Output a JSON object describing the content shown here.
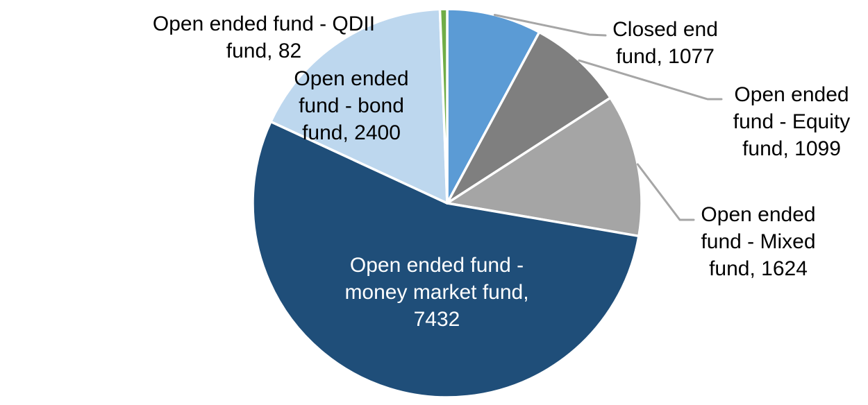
{
  "page": {
    "background_color": "#FFFFFF"
  },
  "chart_data": {
    "type": "pie",
    "title": "",
    "legend": "none",
    "total": 13714,
    "start_angle_deg": 0,
    "direction": "clockwise",
    "slice_border_color": "#FFFFFF",
    "leader_line_color": "#A6A6A6",
    "label_font_size_px": 30,
    "slices": [
      {
        "name": "Closed end fund",
        "value": 1077,
        "color": "#5B9BD5",
        "label_lines": [
          "Closed end",
          "fund, 1077"
        ],
        "label_placement": "outside-right",
        "label_color": "#000000",
        "has_leader_line": true
      },
      {
        "name": "Open ended fund - Equity fund",
        "value": 1099,
        "color": "#7F7F7F",
        "label_lines": [
          "Open ended",
          "fund - Equity",
          "fund, 1099"
        ],
        "label_placement": "outside-right",
        "label_color": "#000000",
        "has_leader_line": true
      },
      {
        "name": "Open ended fund - Mixed fund",
        "value": 1624,
        "color": "#A5A5A5",
        "label_lines": [
          "Open ended",
          "fund - Mixed",
          "fund, 1624"
        ],
        "label_placement": "outside-right",
        "label_color": "#000000",
        "has_leader_line": true
      },
      {
        "name": "Open ended fund - money market fund",
        "value": 7432,
        "color": "#1F4E79",
        "label_lines": [
          "Open ended fund -",
          "money market fund,",
          "7432"
        ],
        "label_placement": "inside",
        "label_color": "#FFFFFF",
        "has_leader_line": false
      },
      {
        "name": "Open ended fund - bond fund",
        "value": 2400,
        "color": "#BDD7EE",
        "label_lines": [
          "Open ended",
          "fund - bond",
          "fund, 2400"
        ],
        "label_placement": "inside",
        "label_color": "#000000",
        "has_leader_line": false
      },
      {
        "name": "Open ended fund - QDII fund",
        "value": 82,
        "color": "#70AD47",
        "label_lines": [
          "Open ended fund - QDII",
          "fund, 82"
        ],
        "label_placement": "outside-left",
        "label_color": "#000000",
        "has_leader_line": false
      }
    ]
  }
}
